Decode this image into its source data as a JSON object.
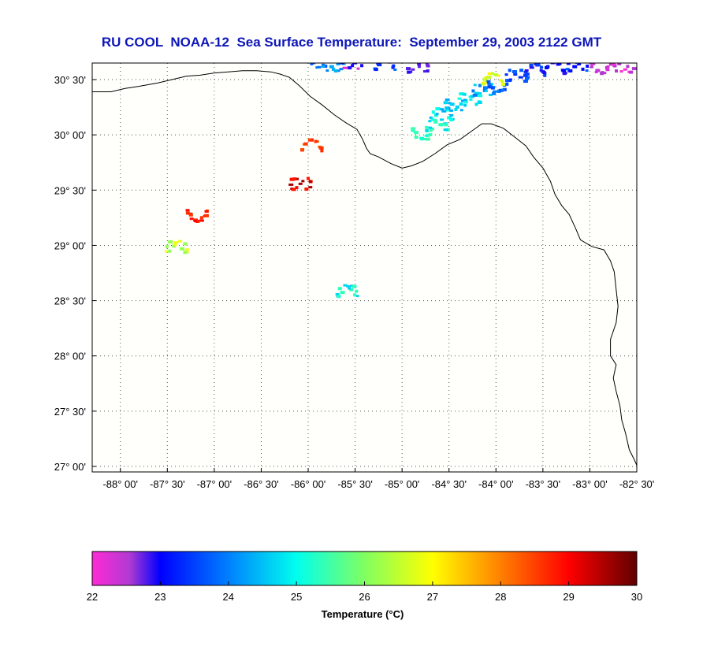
{
  "title": "RU COOL  NOAA-12  Sea Surface Temperature:  September 29, 2003 2122 GMT",
  "colors": {
    "title": "#0d16b8",
    "plot_background": "#fffffb",
    "coastline": "#000000",
    "grid": "#555555"
  },
  "map": {
    "lon_range": [
      -88.3,
      -82.5
    ],
    "lat_range": [
      26.95,
      30.65
    ],
    "lon_ticks": [
      -88,
      -87.5,
      -87,
      -86.5,
      -86,
      -85.5,
      -85,
      -84.5,
      -84,
      -83.5,
      -83,
      -82.5
    ],
    "lon_labels": [
      "-88° 00'",
      "-87° 30'",
      "-87° 00'",
      "-86° 30'",
      "-86° 00'",
      "-85° 30'",
      "-85° 00'",
      "-84° 30'",
      "-84° 00'",
      "-83° 30'",
      "-83° 00'",
      "-82° 30'"
    ],
    "lat_ticks": [
      30.5,
      30.0,
      29.5,
      29.0,
      28.5,
      28.0,
      27.5,
      27.0
    ],
    "lat_labels": [
      "30° 30'",
      "30° 00'",
      "29° 30'",
      "29° 00'",
      "28° 30'",
      "28° 00'",
      "27° 30'",
      "27° 00'"
    ],
    "coastline": [
      [
        -88.3,
        30.39
      ],
      [
        -88.1,
        30.39
      ],
      [
        -87.95,
        30.42
      ],
      [
        -87.8,
        30.44
      ],
      [
        -87.6,
        30.47
      ],
      [
        -87.45,
        30.5
      ],
      [
        -87.3,
        30.53
      ],
      [
        -87.15,
        30.54
      ],
      [
        -87.0,
        30.56
      ],
      [
        -86.85,
        30.57
      ],
      [
        -86.7,
        30.58
      ],
      [
        -86.55,
        30.58
      ],
      [
        -86.4,
        30.57
      ],
      [
        -86.3,
        30.55
      ],
      [
        -86.2,
        30.52
      ],
      [
        -86.1,
        30.45
      ],
      [
        -85.98,
        30.35
      ],
      [
        -85.85,
        30.27
      ],
      [
        -85.72,
        30.18
      ],
      [
        -85.6,
        30.11
      ],
      [
        -85.48,
        30.05
      ],
      [
        -85.42,
        29.96
      ],
      [
        -85.38,
        29.88
      ],
      [
        -85.34,
        29.83
      ],
      [
        -85.25,
        29.8
      ],
      [
        -85.12,
        29.74
      ],
      [
        -85.0,
        29.7
      ],
      [
        -84.9,
        29.72
      ],
      [
        -84.78,
        29.76
      ],
      [
        -84.65,
        29.83
      ],
      [
        -84.52,
        29.91
      ],
      [
        -84.38,
        29.96
      ],
      [
        -84.25,
        30.04
      ],
      [
        -84.15,
        30.1
      ],
      [
        -84.05,
        30.1
      ],
      [
        -83.92,
        30.06
      ],
      [
        -83.8,
        29.98
      ],
      [
        -83.68,
        29.9
      ],
      [
        -83.6,
        29.8
      ],
      [
        -83.5,
        29.7
      ],
      [
        -83.42,
        29.58
      ],
      [
        -83.37,
        29.46
      ],
      [
        -83.3,
        29.36
      ],
      [
        -83.22,
        29.28
      ],
      [
        -83.15,
        29.15
      ],
      [
        -83.1,
        29.05
      ],
      [
        -82.98,
        28.99
      ],
      [
        -82.85,
        28.96
      ],
      [
        -82.78,
        28.86
      ],
      [
        -82.74,
        28.76
      ],
      [
        -82.72,
        28.6
      ],
      [
        -82.7,
        28.45
      ],
      [
        -82.72,
        28.3
      ],
      [
        -82.78,
        28.15
      ],
      [
        -82.78,
        28.0
      ],
      [
        -82.72,
        27.92
      ],
      [
        -82.75,
        27.8
      ],
      [
        -82.72,
        27.68
      ],
      [
        -82.68,
        27.55
      ],
      [
        -82.66,
        27.42
      ],
      [
        -82.62,
        27.3
      ],
      [
        -82.58,
        27.15
      ],
      [
        -82.52,
        27.05
      ],
      [
        -82.47,
        26.95
      ]
    ]
  },
  "sst": {
    "patches": [
      {
        "lon": -85.9,
        "lat": 30.67,
        "temp": 23.8
      },
      {
        "lon": -85.75,
        "lat": 30.64,
        "temp": 24.2
      },
      {
        "lon": -85.55,
        "lat": 30.66,
        "temp": 22.6
      },
      {
        "lon": -85.2,
        "lat": 30.65,
        "temp": 23.6
      },
      {
        "lon": -84.85,
        "lat": 30.63,
        "temp": 22.8
      },
      {
        "lon": -84.6,
        "lat": 30.2,
        "temp": 24.7
      },
      {
        "lon": -84.45,
        "lat": 30.28,
        "temp": 24.5
      },
      {
        "lon": -84.3,
        "lat": 30.34,
        "temp": 24.9
      },
      {
        "lon": -84.15,
        "lat": 30.42,
        "temp": 24.3
      },
      {
        "lon": -84.0,
        "lat": 30.45,
        "temp": 23.8
      },
      {
        "lon": -83.8,
        "lat": 30.55,
        "temp": 23.5
      },
      {
        "lon": -83.6,
        "lat": 30.6,
        "temp": 23.2
      },
      {
        "lon": -83.4,
        "lat": 30.62,
        "temp": 23.0
      },
      {
        "lon": -83.15,
        "lat": 30.64,
        "temp": 23.4
      },
      {
        "lon": -82.9,
        "lat": 30.62,
        "temp": 22.4
      },
      {
        "lon": -82.65,
        "lat": 30.63,
        "temp": 22.2
      },
      {
        "lon": -84.8,
        "lat": 30.02,
        "temp": 25.3
      },
      {
        "lon": -84.65,
        "lat": 30.1,
        "temp": 25.0
      },
      {
        "lon": -84.05,
        "lat": 30.52,
        "temp": 26.8
      },
      {
        "lon": -86.1,
        "lat": 29.57,
        "temp": 29.2
      },
      {
        "lon": -87.2,
        "lat": 29.28,
        "temp": 28.8
      },
      {
        "lon": -85.98,
        "lat": 29.92,
        "temp": 28.5
      },
      {
        "lon": -87.42,
        "lat": 29.0,
        "temp": 26.5
      },
      {
        "lon": -85.6,
        "lat": 28.6,
        "temp": 25.0
      }
    ]
  },
  "colorbar": {
    "min": 22,
    "max": 30,
    "ticks": [
      22,
      23,
      24,
      25,
      26,
      27,
      28,
      29,
      30
    ],
    "tick_labels": [
      "22",
      "23",
      "24",
      "25",
      "26",
      "27",
      "28",
      "29",
      "30"
    ],
    "stops": [
      {
        "value": 22,
        "color": "#ff2ad6"
      },
      {
        "value": 22.55,
        "color": "#b03ad2"
      },
      {
        "value": 23,
        "color": "#0000ff"
      },
      {
        "value": 24,
        "color": "#0080ff"
      },
      {
        "value": 25,
        "color": "#00ffee"
      },
      {
        "value": 26,
        "color": "#80ff60"
      },
      {
        "value": 27,
        "color": "#ffff00"
      },
      {
        "value": 28,
        "color": "#ff8000"
      },
      {
        "value": 29,
        "color": "#ff0000"
      },
      {
        "value": 30,
        "color": "#600000"
      }
    ],
    "label": "Temperature (°C)"
  }
}
